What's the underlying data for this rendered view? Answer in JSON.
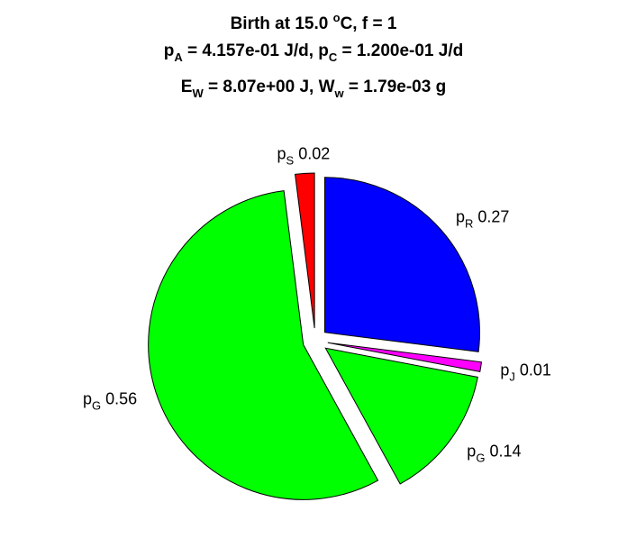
{
  "title": {
    "line1": {
      "text": "Birth at 15.0 ",
      "sup": "o",
      "rest": "C, f = 1"
    },
    "line2": {
      "a_sym": "p",
      "a_sub": "A",
      "a_val": " = 4.157e-01 J/d, ",
      "c_sym": "p",
      "c_sub": "C",
      "c_val": " = 1.200e-01 J/d"
    },
    "line3": {
      "e_sym": "E",
      "e_sub": "W",
      "e_val": " = 8.07e+00 J, ",
      "w_sym": "W",
      "w_sub": "w",
      "w_val": " = 1.79e-03 g"
    }
  },
  "chart_data": {
    "type": "pie",
    "slices": [
      {
        "sym": "p",
        "sub": "R",
        "label": "0.27",
        "value": 0.27,
        "color": "#0000ff"
      },
      {
        "sym": "p",
        "sub": "J",
        "label": "0.01",
        "value": 0.01,
        "color": "#ff00ff"
      },
      {
        "sym": "p",
        "sub": "G",
        "label": "0.14",
        "value": 0.14,
        "color": "#00ff00"
      },
      {
        "sym": "p",
        "sub": "G",
        "label": "0.56",
        "value": 0.56,
        "color": "#00ff00"
      },
      {
        "sym": "p",
        "sub": "S",
        "label": "0.02",
        "value": 0.02,
        "color": "#ff0000"
      }
    ],
    "start_angle_deg": 90,
    "direction": "clockwise",
    "exploded": true
  }
}
